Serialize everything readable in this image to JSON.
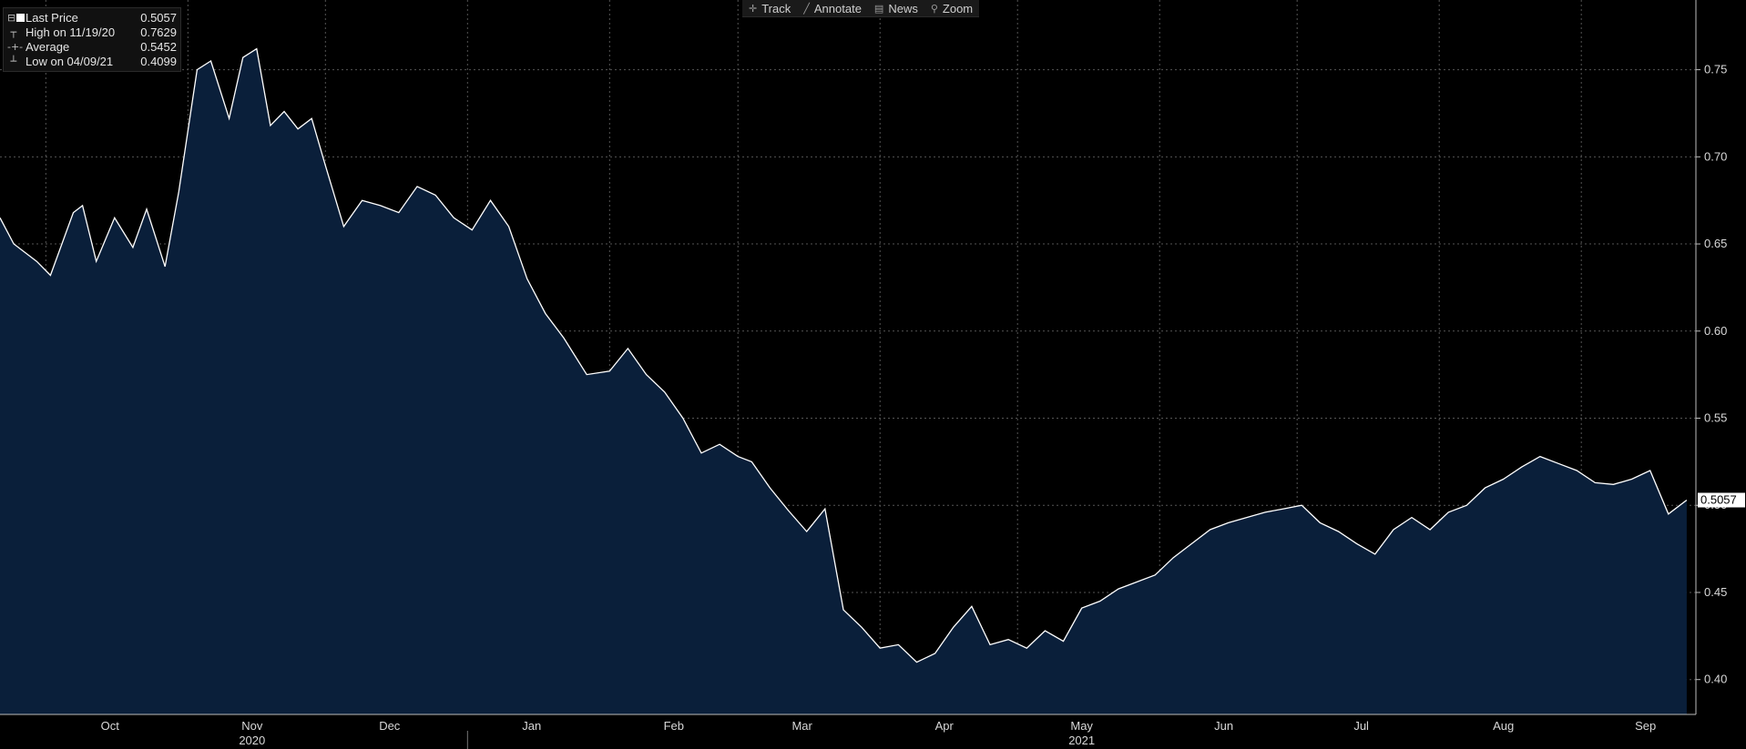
{
  "toolbar": {
    "track": "Track",
    "annotate": "Annotate",
    "news": "News",
    "zoom": "Zoom"
  },
  "legend": [
    {
      "label": "Last Price",
      "value": "0.5057",
      "icon": "filled-square-icon"
    },
    {
      "label": "High on 11/19/20",
      "value": "0.7629",
      "icon": "high-marker-icon"
    },
    {
      "label": "Average",
      "value": "0.5452",
      "icon": "average-line-icon"
    },
    {
      "label": "Low on 04/09/21",
      "value": "0.4099",
      "icon": "low-marker-icon"
    }
  ],
  "colors": {
    "background": "#000000",
    "area_fill": "#0a1f3a",
    "line": "#ffffff",
    "grid": "#555555"
  },
  "chart_data": {
    "type": "area",
    "title": "",
    "xlabel": "",
    "ylabel": "",
    "ylim": [
      0.38,
      0.79
    ],
    "y_ticks": [
      0.4,
      0.45,
      0.5,
      0.55,
      0.6,
      0.65,
      0.7,
      0.75
    ],
    "x_range": [
      "2020-09-21",
      "2021-09-26"
    ],
    "x_month_labels": [
      {
        "label": "Oct",
        "date": "2020-10-15"
      },
      {
        "label": "Nov",
        "date": "2020-11-15"
      },
      {
        "label": "Dec",
        "date": "2020-12-15"
      },
      {
        "label": "Jan",
        "date": "2021-01-15"
      },
      {
        "label": "Feb",
        "date": "2021-02-15"
      },
      {
        "label": "Mar",
        "date": "2021-03-15"
      },
      {
        "label": "Apr",
        "date": "2021-04-15"
      },
      {
        "label": "May",
        "date": "2021-05-15"
      },
      {
        "label": "Jun",
        "date": "2021-06-15"
      },
      {
        "label": "Jul",
        "date": "2021-07-15"
      },
      {
        "label": "Aug",
        "date": "2021-08-15"
      },
      {
        "label": "Sep",
        "date": "2021-09-15"
      }
    ],
    "x_year_labels": [
      {
        "label": "2020",
        "date": "2020-11-15"
      },
      {
        "label": "2021",
        "date": "2021-05-15"
      }
    ],
    "year_separator": "2021-01-01",
    "grid": true,
    "legend_position": "top-left",
    "last_value_label": "0.5057",
    "series": [
      {
        "name": "Last Price",
        "x": [
          "2020-09-21",
          "2020-09-24",
          "2020-09-29",
          "2020-10-02",
          "2020-10-07",
          "2020-10-09",
          "2020-10-12",
          "2020-10-16",
          "2020-10-20",
          "2020-10-23",
          "2020-10-27",
          "2020-10-30",
          "2020-11-03",
          "2020-11-06",
          "2020-11-10",
          "2020-11-13",
          "2020-11-16",
          "2020-11-19",
          "2020-11-22",
          "2020-11-25",
          "2020-11-28",
          "2020-12-01",
          "2020-12-05",
          "2020-12-09",
          "2020-12-13",
          "2020-12-17",
          "2020-12-21",
          "2020-12-25",
          "2020-12-29",
          "2021-01-02",
          "2021-01-06",
          "2021-01-10",
          "2021-01-14",
          "2021-01-18",
          "2021-01-22",
          "2021-01-27",
          "2021-02-01",
          "2021-02-05",
          "2021-02-09",
          "2021-02-13",
          "2021-02-17",
          "2021-02-21",
          "2021-02-25",
          "2021-03-01",
          "2021-03-04",
          "2021-03-08",
          "2021-03-12",
          "2021-03-16",
          "2021-03-20",
          "2021-03-24",
          "2021-03-28",
          "2021-04-01",
          "2021-04-05",
          "2021-04-09",
          "2021-04-13",
          "2021-04-17",
          "2021-04-21",
          "2021-04-25",
          "2021-04-29",
          "2021-05-03",
          "2021-05-07",
          "2021-05-11",
          "2021-05-15",
          "2021-05-19",
          "2021-05-23",
          "2021-05-27",
          "2021-05-31",
          "2021-06-04",
          "2021-06-08",
          "2021-06-12",
          "2021-06-16",
          "2021-06-20",
          "2021-06-24",
          "2021-06-28",
          "2021-07-02",
          "2021-07-06",
          "2021-07-10",
          "2021-07-14",
          "2021-07-18",
          "2021-07-22",
          "2021-07-26",
          "2021-07-30",
          "2021-08-03",
          "2021-08-07",
          "2021-08-11",
          "2021-08-15",
          "2021-08-19",
          "2021-08-23",
          "2021-08-27",
          "2021-08-31",
          "2021-09-04",
          "2021-09-08",
          "2021-09-12",
          "2021-09-16",
          "2021-09-20",
          "2021-09-24"
        ],
        "y": [
          0.665,
          0.65,
          0.64,
          0.632,
          0.668,
          0.672,
          0.64,
          0.665,
          0.648,
          0.67,
          0.637,
          0.68,
          0.75,
          0.755,
          0.722,
          0.757,
          0.762,
          0.718,
          0.726,
          0.716,
          0.722,
          0.695,
          0.66,
          0.675,
          0.672,
          0.668,
          0.683,
          0.678,
          0.665,
          0.658,
          0.675,
          0.66,
          0.63,
          0.61,
          0.596,
          0.575,
          0.577,
          0.59,
          0.575,
          0.565,
          0.55,
          0.53,
          0.535,
          0.528,
          0.525,
          0.51,
          0.497,
          0.485,
          0.498,
          0.44,
          0.43,
          0.418,
          0.42,
          0.41,
          0.415,
          0.43,
          0.442,
          0.42,
          0.423,
          0.418,
          0.428,
          0.422,
          0.441,
          0.445,
          0.452,
          0.456,
          0.46,
          0.47,
          0.478,
          0.486,
          0.49,
          0.493,
          0.496,
          0.498,
          0.5,
          0.49,
          0.485,
          0.478,
          0.472,
          0.486,
          0.493,
          0.486,
          0.496,
          0.5,
          0.51,
          0.515,
          0.522,
          0.528,
          0.524,
          0.52,
          0.513,
          0.512,
          0.515,
          0.52,
          0.495,
          0.503
        ]
      }
    ]
  }
}
